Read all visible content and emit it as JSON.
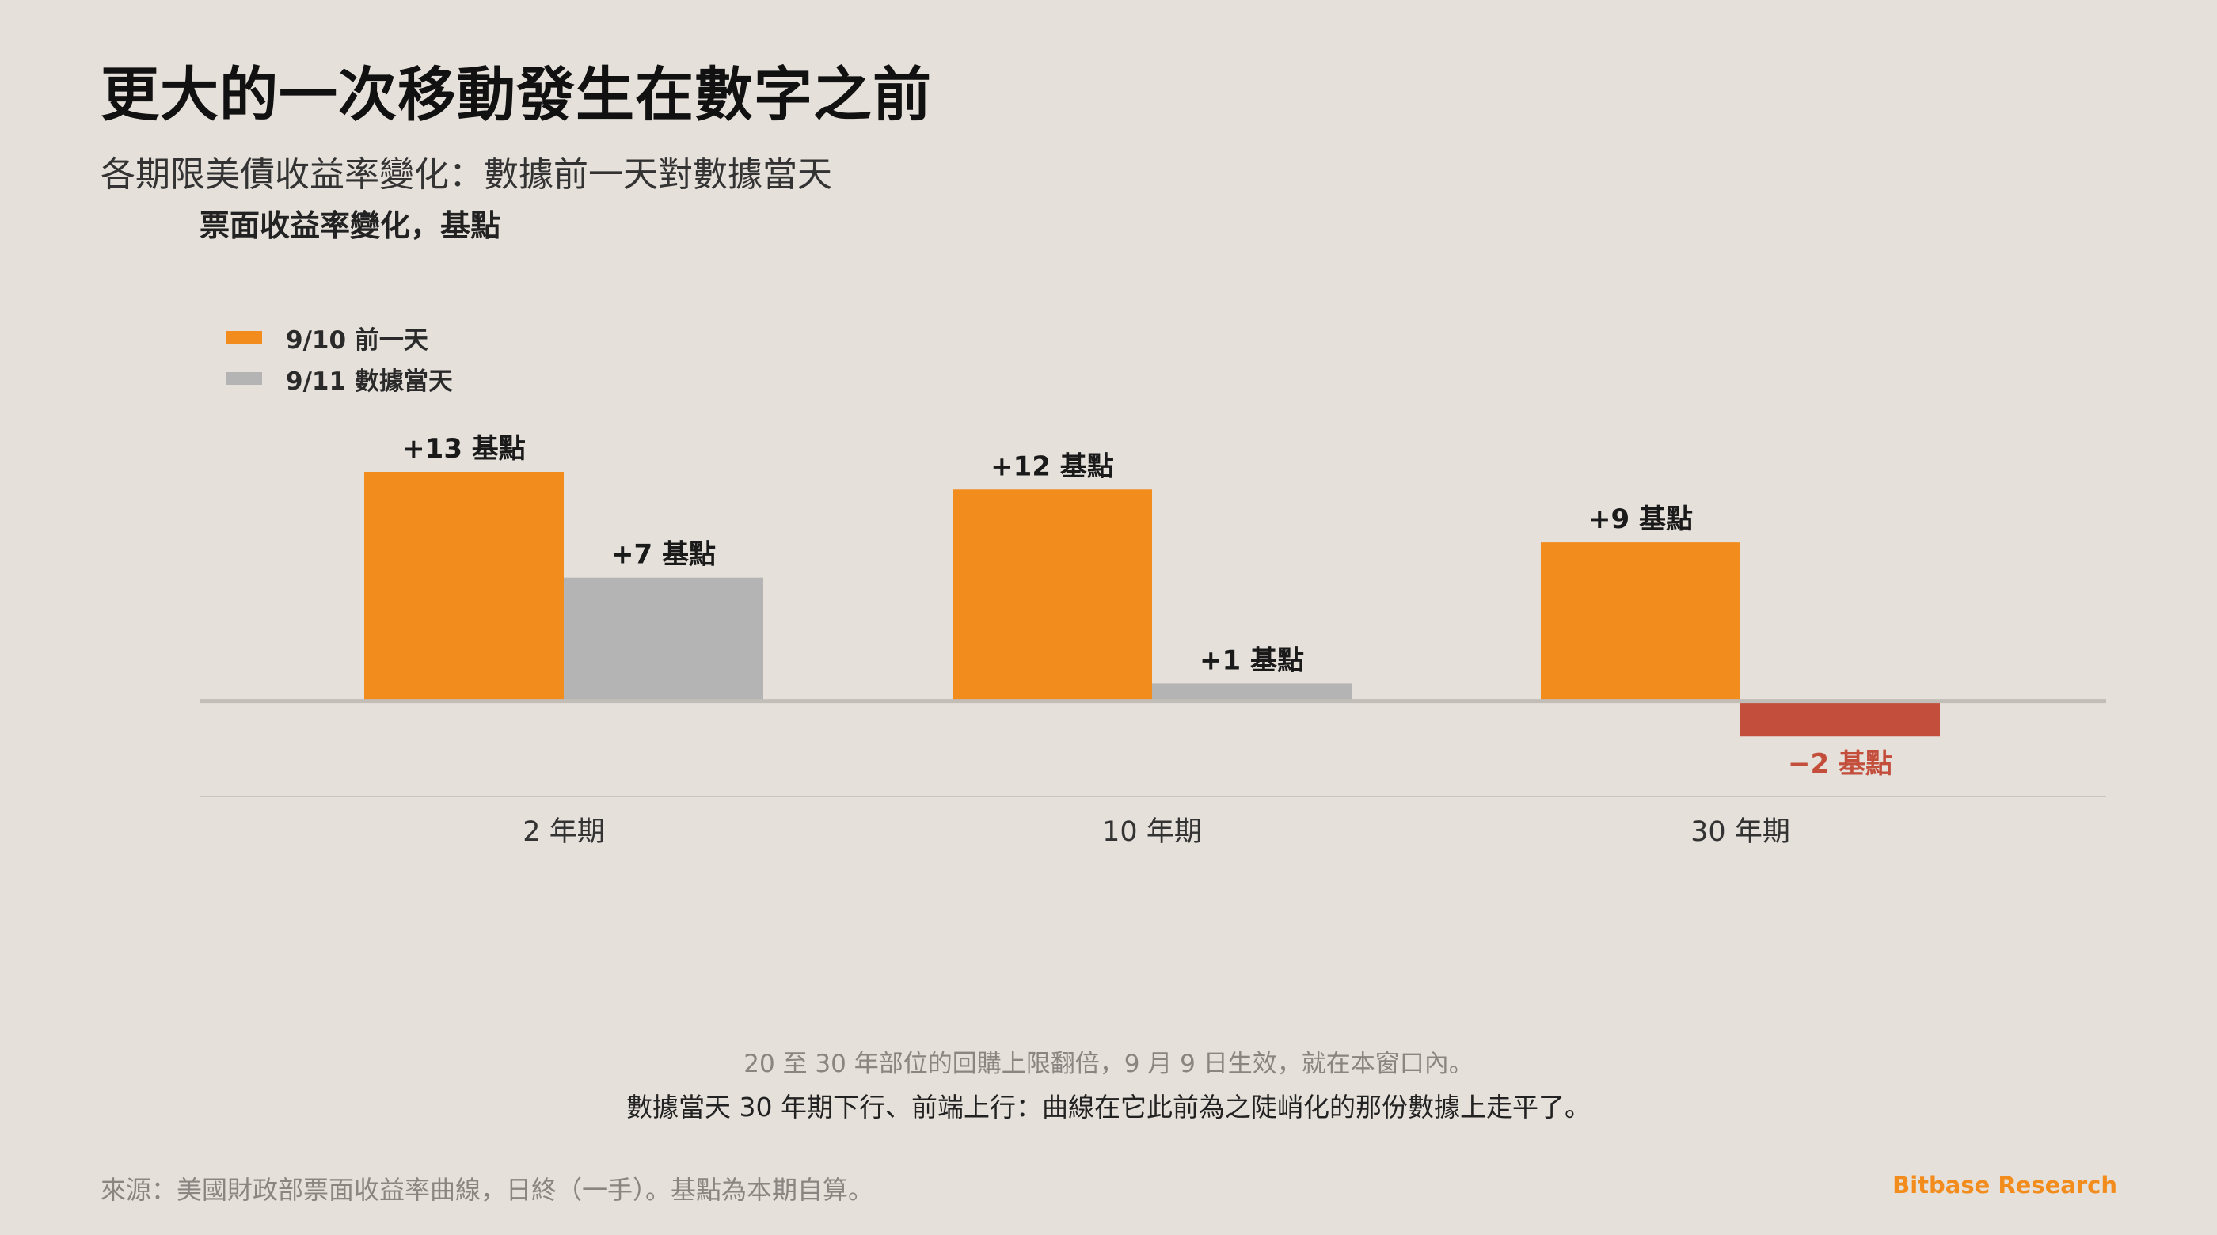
{
  "header": {
    "title": "更大的一次移動發生在數字之前",
    "subtitle": "各期限美債收益率變化：數據前一天對數據當天",
    "unit_label": "票面收益率變化，基點"
  },
  "legend": [
    {
      "label": "9/10 前一天",
      "color": "#f28c1c"
    },
    {
      "label": "9/11 數據當天",
      "color": "#b4b4b4"
    }
  ],
  "chart_data": {
    "type": "bar",
    "categories": [
      "2 年期",
      "10 年期",
      "30 年期"
    ],
    "series": [
      {
        "name": "9/10 前一天",
        "values": [
          13,
          12,
          9
        ],
        "labels": [
          "+13 基點",
          "+12 基點",
          "+9 基點"
        ],
        "color": "#f28c1c"
      },
      {
        "name": "9/11 數據當天",
        "values": [
          7,
          1,
          -2
        ],
        "labels": [
          "+7 基點",
          "+1 基點",
          "−2 基點"
        ],
        "color": "#b4b4b4"
      }
    ],
    "negative_color": "#c44e3c",
    "ylabel": "票面收益率變化，基點",
    "ylim": [
      -5.4,
      16.5
    ],
    "legend_position": "top-left"
  },
  "footer": {
    "note1": "20 至 30 年部位的回購上限翻倍，9 月 9 日生效，就在本窗口內。",
    "note2": "數據當天 30 年期下行、前端上行：曲線在它此前為之陡峭化的那份數據上走平了。",
    "source": "來源：美國財政部票面收益率曲線，日終（一手）。基點為本期自算。",
    "brand": "Bitbase Research"
  }
}
